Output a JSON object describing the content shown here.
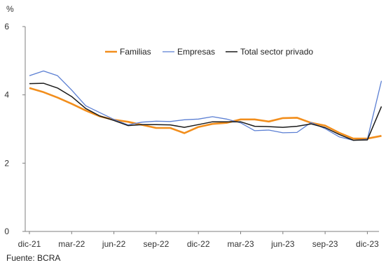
{
  "unit_label": "%",
  "source": "Fuente: BCRA",
  "chart_data": {
    "type": "line",
    "title": "",
    "xlabel": "",
    "ylabel": "%",
    "ylim": [
      0,
      6
    ],
    "yticks": [
      0,
      2,
      4,
      6
    ],
    "grid": false,
    "legend_position": "top-center",
    "x": [
      "dic-21",
      "ene-22",
      "feb-22",
      "mar-22",
      "abr-22",
      "may-22",
      "jun-22",
      "jul-22",
      "ago-22",
      "sep-22",
      "oct-22",
      "nov-22",
      "dic-22",
      "ene-23",
      "feb-23",
      "mar-23",
      "abr-23",
      "may-23",
      "jun-23",
      "jul-23",
      "ago-23",
      "sep-23",
      "oct-23",
      "nov-23",
      "dic-23",
      "ene-24"
    ],
    "x_tick_labels": [
      "dic-21",
      "mar-22",
      "jun-22",
      "sep-22",
      "dic-22",
      "mar-23",
      "jun-23",
      "sep-23",
      "dic-23"
    ],
    "series": [
      {
        "name": "Familias",
        "color": "#F28E1C",
        "values": [
          4.2,
          4.08,
          3.92,
          3.74,
          3.54,
          3.37,
          3.27,
          3.21,
          3.12,
          3.03,
          3.03,
          2.88,
          3.06,
          3.15,
          3.18,
          3.28,
          3.28,
          3.22,
          3.32,
          3.33,
          3.18,
          3.1,
          2.89,
          2.72,
          2.72,
          2.8
        ]
      },
      {
        "name": "Empresas",
        "color": "#5B7FD3",
        "values": [
          4.56,
          4.7,
          4.56,
          4.14,
          3.68,
          3.48,
          3.28,
          3.12,
          3.2,
          3.23,
          3.22,
          3.27,
          3.29,
          3.36,
          3.29,
          3.18,
          2.95,
          2.97,
          2.89,
          2.9,
          3.19,
          3.01,
          2.77,
          2.67,
          2.7,
          4.41
        ]
      },
      {
        "name": "Total sector privado",
        "color": "#1A1A1A",
        "values": [
          4.33,
          4.34,
          4.2,
          3.95,
          3.6,
          3.38,
          3.25,
          3.1,
          3.13,
          3.13,
          3.12,
          3.05,
          3.13,
          3.21,
          3.21,
          3.21,
          3.08,
          3.07,
          3.05,
          3.08,
          3.15,
          3.04,
          2.84,
          2.67,
          2.68,
          3.66
        ]
      }
    ]
  }
}
